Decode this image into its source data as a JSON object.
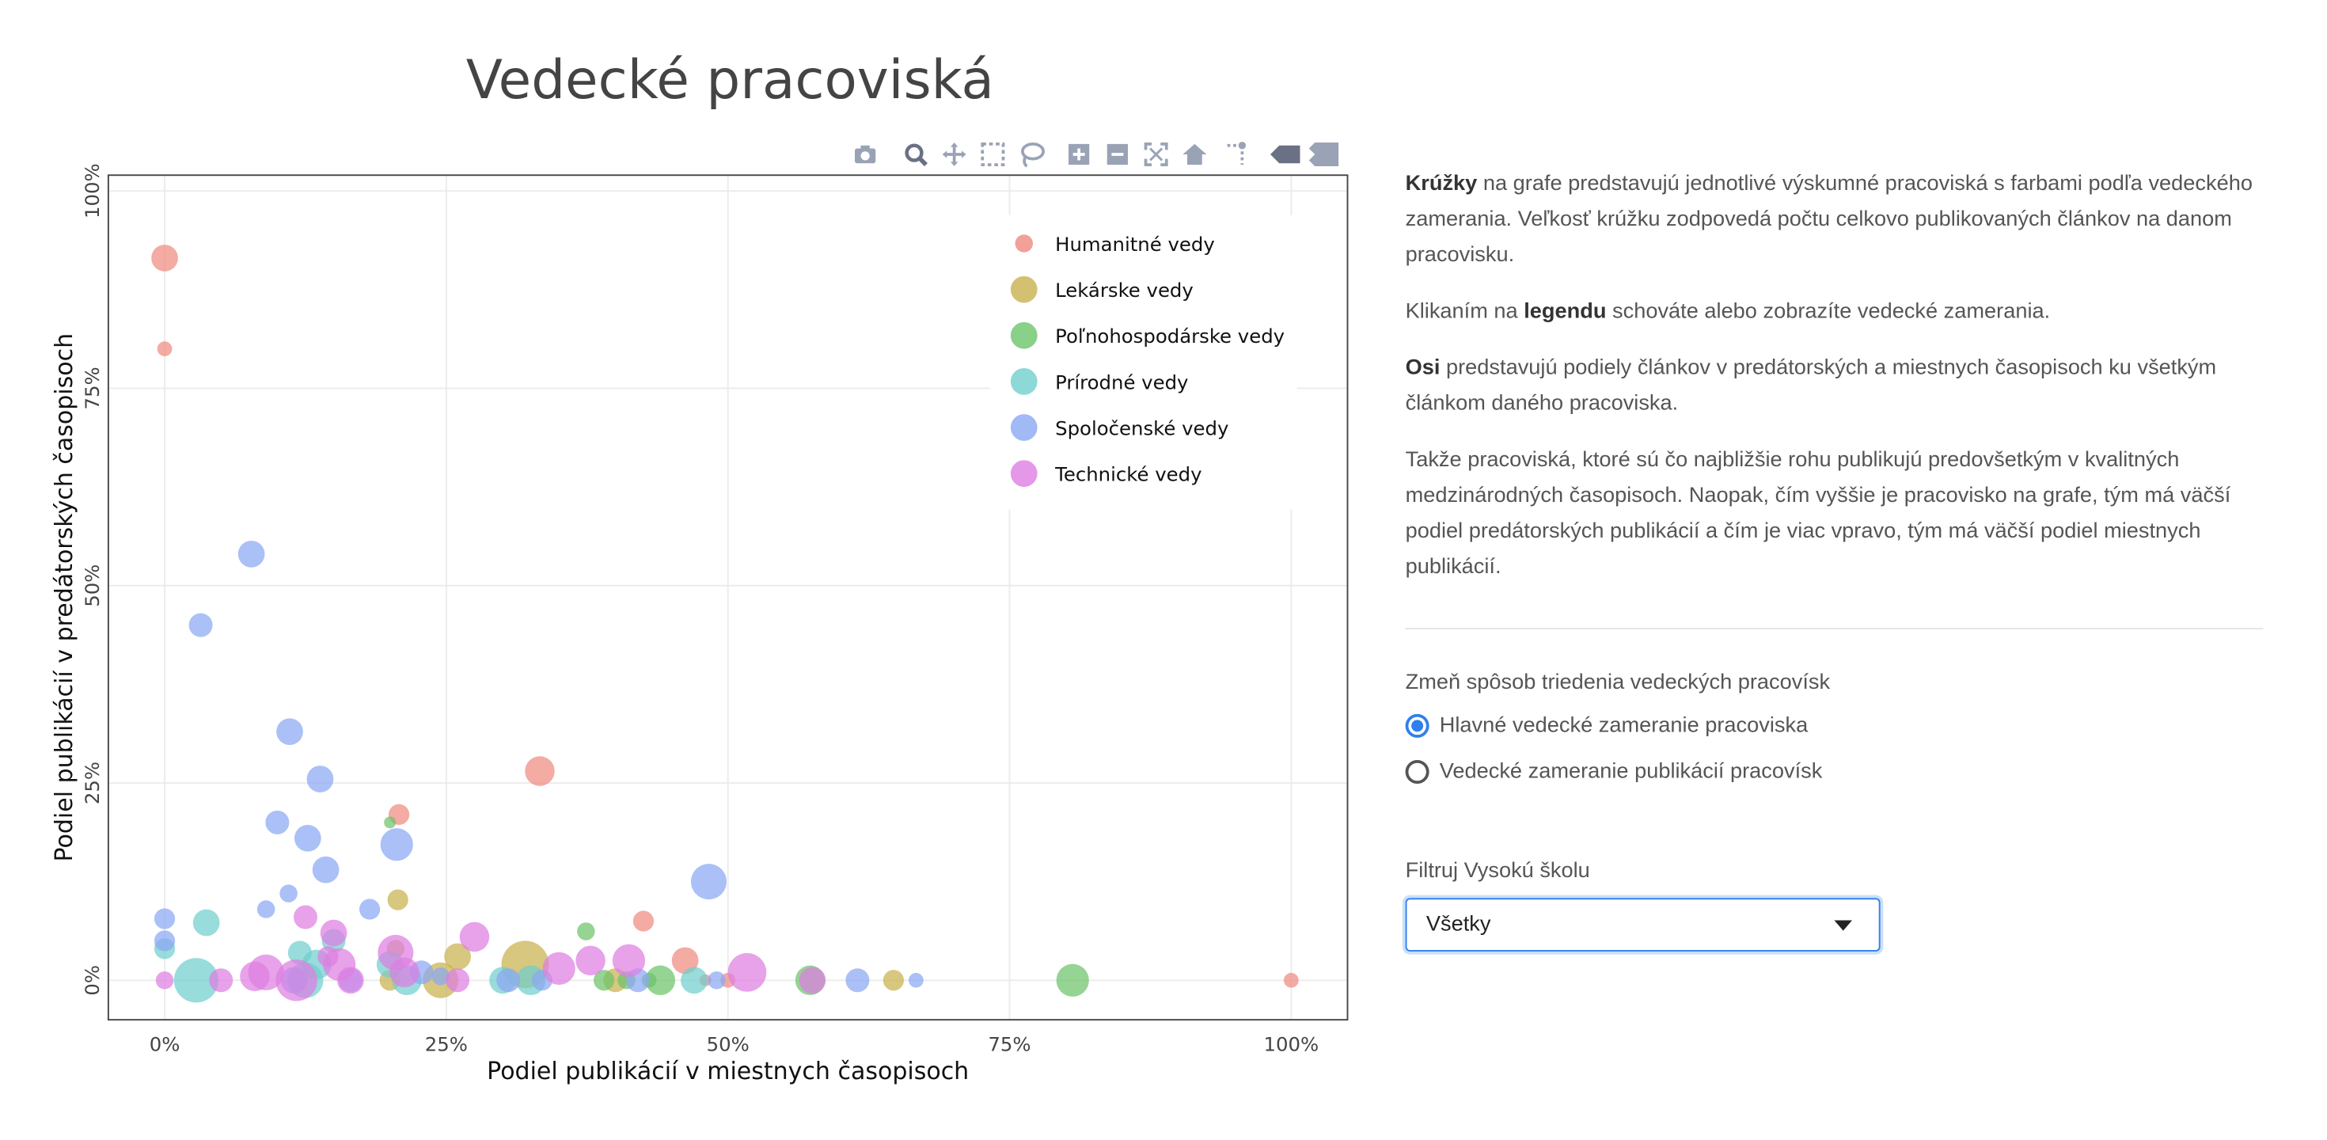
{
  "chart_data": {
    "type": "scatter",
    "title": "Vedecké pracoviská",
    "xlabel": "Podiel publikácií v miestnych časopisoch",
    "ylabel": "Podiel publikácií v predátorských časopisoch",
    "xlim": [
      -0.05,
      1.05
    ],
    "ylim": [
      -0.05,
      1.02
    ],
    "x_ticks": [
      0,
      0.25,
      0.5,
      0.75,
      1
    ],
    "x_tick_labels": [
      "0%",
      "25%",
      "50%",
      "75%",
      "100%"
    ],
    "y_ticks": [
      0,
      0.25,
      0.5,
      0.75,
      1
    ],
    "y_tick_labels": [
      "0%",
      "25%",
      "50%",
      "75%",
      "100%"
    ],
    "grid": true,
    "legend_position": "top-right",
    "series": [
      {
        "name": "Humanitné vedy",
        "color": "#ef8a80",
        "points": [
          [
            0,
            0.915,
            9
          ],
          [
            0,
            0.8,
            5
          ],
          [
            0.333,
            0.265,
            10
          ],
          [
            0.208,
            0.21,
            7
          ],
          [
            0.425,
            0.075,
            7
          ],
          [
            0.462,
            0.025,
            9
          ],
          [
            1,
            0,
            5
          ],
          [
            0.5,
            0,
            5
          ],
          [
            0.48,
            0,
            4
          ]
        ]
      },
      {
        "name": "Lekárske vedy",
        "color": "#c8b14e",
        "points": [
          [
            0.207,
            0.102,
            7
          ],
          [
            0.32,
            0.02,
            16
          ],
          [
            0.245,
            0,
            12
          ],
          [
            0.26,
            0.03,
            9
          ],
          [
            0.647,
            0,
            7
          ],
          [
            0.4,
            0,
            8
          ],
          [
            0.2,
            0,
            7
          ],
          [
            0.205,
            0.04,
            6
          ]
        ]
      },
      {
        "name": "Poľnohospodárske vedy",
        "color": "#6cc46a",
        "points": [
          [
            0.806,
            0,
            11
          ],
          [
            0.573,
            0,
            10
          ],
          [
            0.44,
            0,
            10
          ],
          [
            0.374,
            0.062,
            6
          ],
          [
            0.39,
            0,
            7
          ],
          [
            0.41,
            0,
            6
          ],
          [
            0.2,
            0.2,
            4
          ],
          [
            0.43,
            0,
            5
          ]
        ]
      },
      {
        "name": "Prírodné vedy",
        "color": "#70cfcd",
        "points": [
          [
            0.028,
            0,
            15
          ],
          [
            0.037,
            0.073,
            9
          ],
          [
            0,
            0.04,
            7
          ],
          [
            0.125,
            0,
            12
          ],
          [
            0.135,
            0.02,
            10
          ],
          [
            0.15,
            0.05,
            8
          ],
          [
            0.2,
            0.02,
            9
          ],
          [
            0.215,
            0,
            10
          ],
          [
            0.3,
            0,
            9
          ],
          [
            0.325,
            0,
            10
          ],
          [
            0.47,
            0,
            9
          ],
          [
            0.12,
            0.035,
            8
          ]
        ]
      },
      {
        "name": "Spoločenské vedy",
        "color": "#8aa8f2",
        "points": [
          [
            0.077,
            0.54,
            9
          ],
          [
            0.032,
            0.45,
            8
          ],
          [
            0.111,
            0.315,
            9
          ],
          [
            0.138,
            0.255,
            9
          ],
          [
            0.1,
            0.2,
            8
          ],
          [
            0.127,
            0.18,
            9
          ],
          [
            0.143,
            0.14,
            9
          ],
          [
            0.206,
            0.172,
            11
          ],
          [
            0.11,
            0.11,
            6
          ],
          [
            0.09,
            0.09,
            6
          ],
          [
            0.182,
            0.09,
            7
          ],
          [
            0.483,
            0.125,
            12
          ],
          [
            0,
            0.078,
            7
          ],
          [
            0,
            0.05,
            7
          ],
          [
            0.115,
            0,
            9
          ],
          [
            0.165,
            0,
            8
          ],
          [
            0.305,
            0,
            8
          ],
          [
            0.335,
            0,
            7
          ],
          [
            0.42,
            0,
            8
          ],
          [
            0.49,
            0,
            6
          ],
          [
            0.615,
            0,
            8
          ],
          [
            0.667,
            0,
            5
          ],
          [
            0.228,
            0.01,
            8
          ],
          [
            0.245,
            0.005,
            6
          ]
        ]
      },
      {
        "name": "Technické vedy",
        "color": "#de7ee2",
        "points": [
          [
            0,
            0,
            6
          ],
          [
            0.05,
            0,
            8
          ],
          [
            0.08,
            0.005,
            10
          ],
          [
            0.09,
            0.01,
            12
          ],
          [
            0.117,
            0,
            14
          ],
          [
            0.125,
            0.08,
            8
          ],
          [
            0.15,
            0.06,
            9
          ],
          [
            0.155,
            0.02,
            11
          ],
          [
            0.165,
            0,
            9
          ],
          [
            0.205,
            0.035,
            12
          ],
          [
            0.213,
            0.01,
            10
          ],
          [
            0.275,
            0.055,
            10
          ],
          [
            0.35,
            0.015,
            11
          ],
          [
            0.378,
            0.025,
            10
          ],
          [
            0.412,
            0.025,
            11
          ],
          [
            0.517,
            0.01,
            13
          ],
          [
            0.575,
            0,
            9
          ],
          [
            0.26,
            0,
            8
          ],
          [
            0.145,
            0.03,
            7
          ]
        ]
      }
    ]
  },
  "modebar": {
    "buttons": [
      "camera-icon",
      "zoom-icon",
      "pan-icon",
      "box-select-icon",
      "lasso-select-icon",
      "zoom-in-icon",
      "zoom-out-icon",
      "autoscale-icon",
      "reset-axes-icon",
      "spike-lines-icon",
      "hover-closest-icon",
      "hover-compare-icon"
    ]
  },
  "info": {
    "p1_bold": "Krúžky",
    "p1_rest": " na grafe predstavujú jednotlivé výskumné pracoviská s farbami podľa vedeckého zamerania. Veľkosť krúžku zodpovedá počtu celkovo publikovaných článkov na danom pracovisku.",
    "p2_pre": "Klikaním na ",
    "p2_bold": "legendu",
    "p2_post": " schováte alebo zobrazíte vedecké zamerania.",
    "p3_bold": "Osi",
    "p3_rest": " predstavujú podiely článkov v predátorských a miestnych časopisoch ku všetkým článkom daného pracoviska.",
    "p4": "Takže pracoviská, ktoré sú čo najbližšie rohu publikujú predovšetkým v kvalitných medzinárodných časopisoch. Naopak, čím vyššie je pracovisko na grafe, tým má väčší podiel predátorských publikácií a čím je viac vpravo, tým má väčší podiel miestnych publikácií."
  },
  "sort": {
    "label": "Zmeň spôsob triedenia vedeckých pracovísk",
    "options": [
      {
        "label": "Hlavné vedecké zameranie pracoviska",
        "selected": true
      },
      {
        "label": "Vedecké zameranie publikácií pracovísk",
        "selected": false
      }
    ]
  },
  "filter": {
    "label": "Filtruj Vysokú školu",
    "value": "Všetky"
  }
}
